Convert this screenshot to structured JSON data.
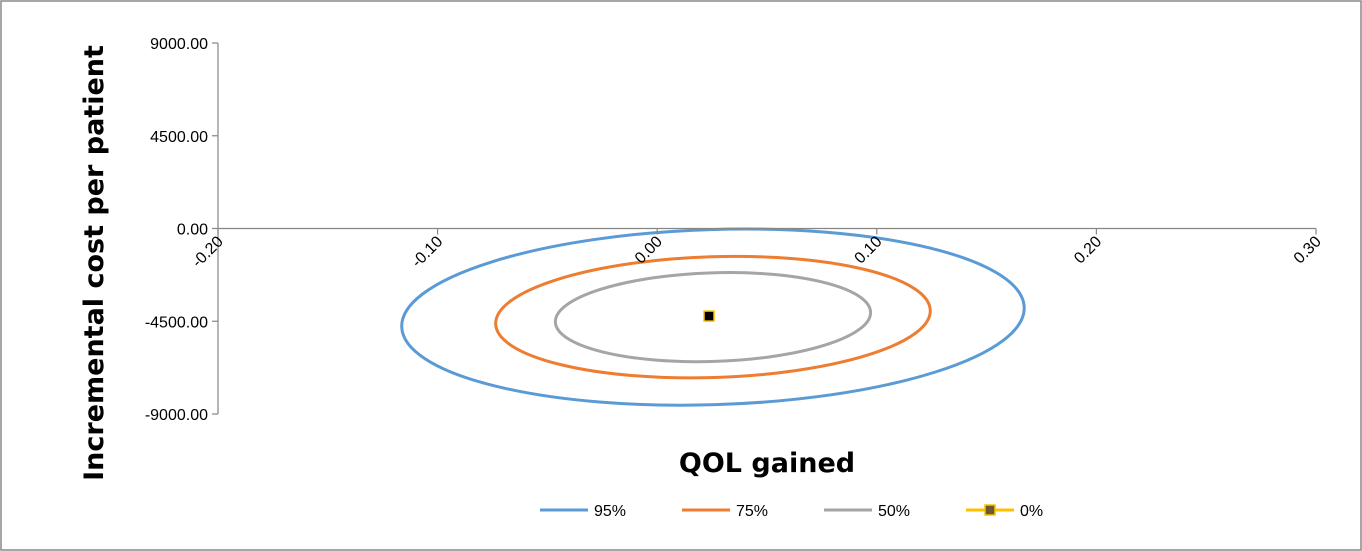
{
  "chart_data": {
    "type": "scatter",
    "title": "",
    "xlabel": "QOL gained",
    "ylabel": "Incremental cost per patient",
    "xlim": [
      -0.2,
      0.3
    ],
    "ylim": [
      -9000,
      9000
    ],
    "x_ticks": [
      "-0.20",
      "-0.10",
      "0.00",
      "0.10",
      "0.20",
      "0.30"
    ],
    "y_ticks": [
      "9000.00",
      "4500.00",
      "0.00",
      "-4500.00",
      "-9000.00"
    ],
    "x_tick_values": [
      -0.2,
      -0.1,
      0.0,
      0.1,
      0.2,
      0.3
    ],
    "y_tick_values": [
      9000,
      4500,
      0,
      -4500,
      -9000
    ],
    "grid": false,
    "legend_position": "bottom",
    "series": [
      {
        "name": "95%",
        "color": "#5B9BD5",
        "shape": "ellipse",
        "center": [
          0.0254,
          -4300
        ],
        "semi_axes": [
          0.1418,
          4250
        ],
        "rotation_deg": -1.8
      },
      {
        "name": "75%",
        "color": "#ED7D31",
        "shape": "ellipse",
        "center": [
          0.0254,
          -4300
        ],
        "semi_axes": [
          0.099,
          2930
        ],
        "rotation_deg": -1.8
      },
      {
        "name": "50%",
        "color": "#A5A5A5",
        "shape": "ellipse",
        "center": [
          0.0254,
          -4300
        ],
        "semi_axes": [
          0.0718,
          2150
        ],
        "rotation_deg": -1.8
      },
      {
        "name": "0%",
        "color": "#FFC000",
        "marker_color": "#000000",
        "shape": "point",
        "x": [
          0.0236
        ],
        "y": [
          -4250
        ]
      }
    ]
  }
}
